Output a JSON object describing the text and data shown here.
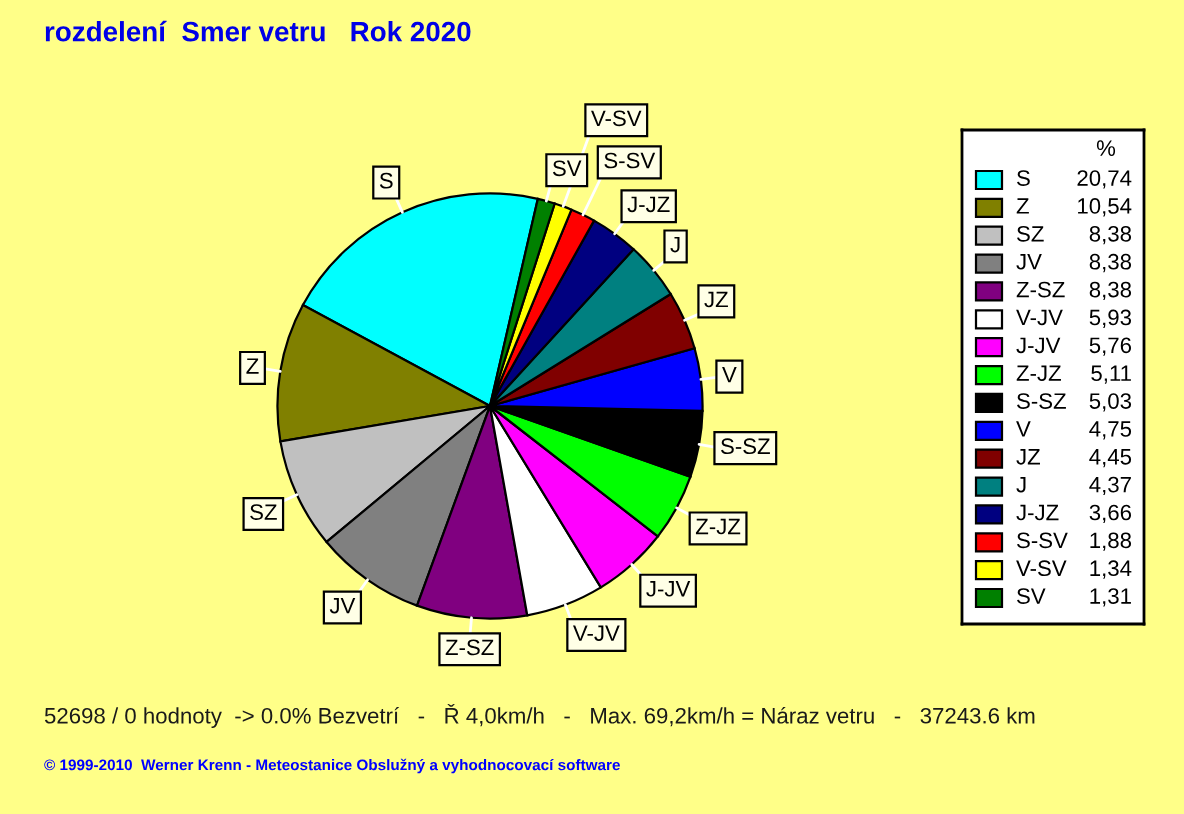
{
  "chart_data": {
    "type": "pie",
    "title": "rozdelení  Smer vetru   Rok 2020",
    "categories": [
      "S",
      "Z",
      "SZ",
      "JV",
      "Z-SZ",
      "V-JV",
      "J-JV",
      "Z-JZ",
      "S-SZ",
      "V",
      "JZ",
      "J",
      "J-JZ",
      "S-SV",
      "V-SV",
      "SV"
    ],
    "values": [
      20.74,
      10.54,
      8.38,
      8.38,
      8.38,
      5.93,
      5.76,
      5.11,
      5.03,
      4.75,
      4.45,
      4.37,
      3.66,
      1.88,
      1.34,
      1.31
    ],
    "colors": [
      "#00ffff",
      "#808000",
      "#c0c0c0",
      "#808080",
      "#800080",
      "#ffffff",
      "#ff00ff",
      "#00ff00",
      "#000000",
      "#0000ff",
      "#800000",
      "#008080",
      "#000080",
      "#ff0000",
      "#ffff00",
      "#008000"
    ],
    "value_labels": [
      "20,74",
      "10,54",
      "8,38",
      "8,38",
      "8,38",
      "5,93",
      "5,76",
      "5,11",
      "5,03",
      "4,75",
      "4,45",
      "4,37",
      "3,66",
      "1,88",
      "1,34",
      "1,31"
    ],
    "legend": "right",
    "legend_title": "%",
    "annotations": [
      "52698 / 0 hodnoty  -> 0.0% Bezvetrí   -   Ř 4,0km/h   -   Max. 69,2km/h = Náraz vetru   -   37243.6 km",
      "© 1999-2010  Werner Krenn - Meteostanice Obslužný a vyhodnocovací software"
    ]
  }
}
